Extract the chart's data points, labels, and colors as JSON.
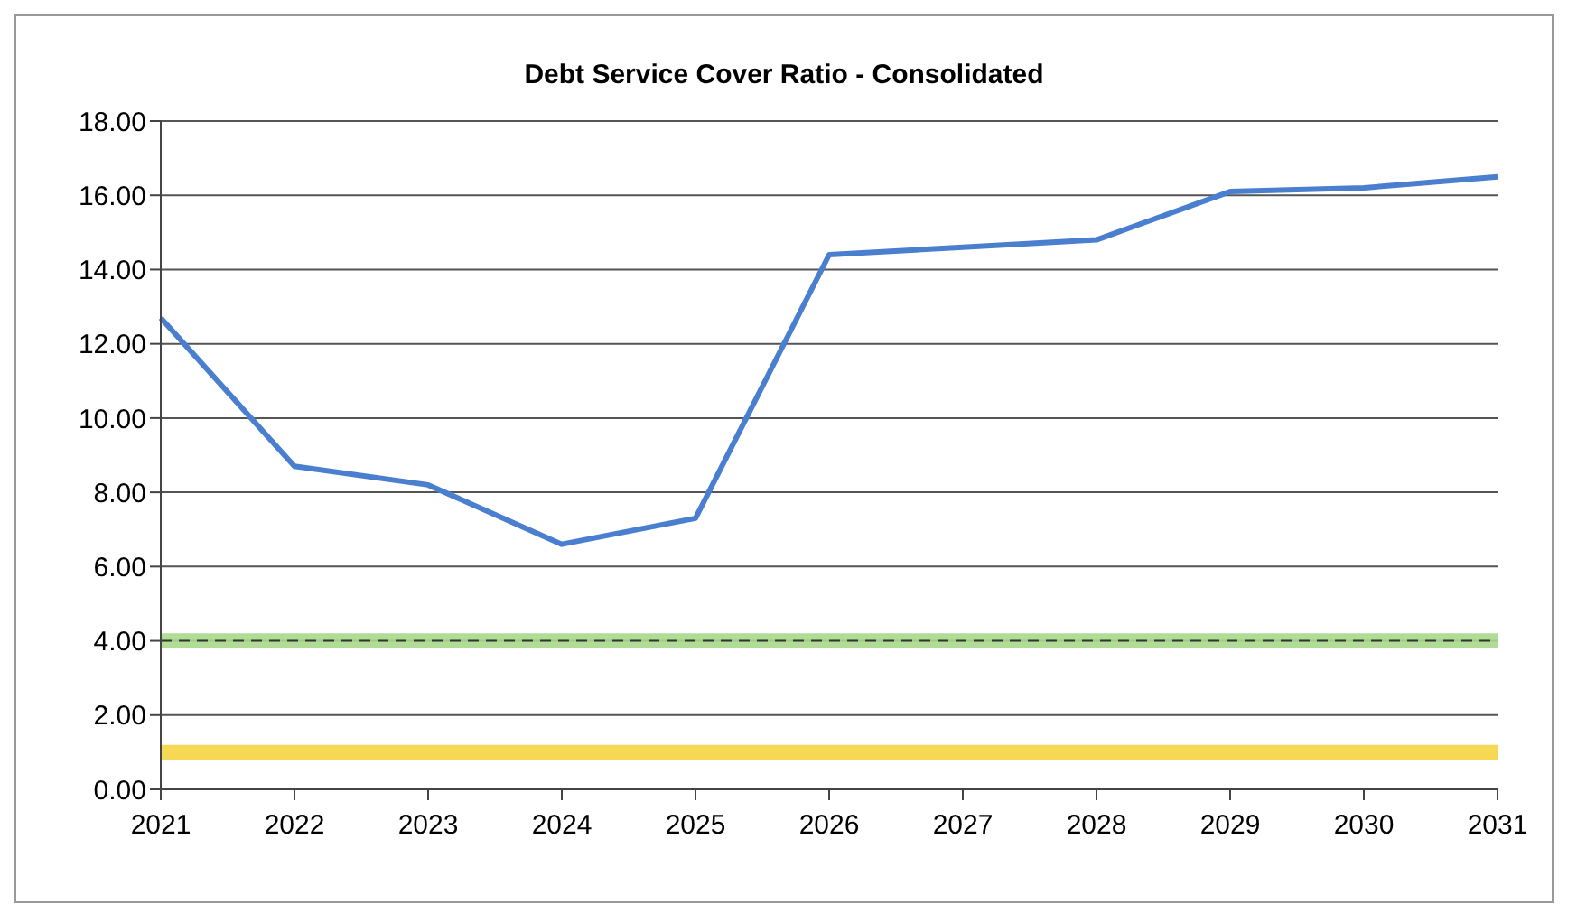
{
  "chart_data": {
    "type": "line",
    "title": "Debt Service Cover Ratio - Consolidated",
    "categories": [
      "2021",
      "2022",
      "2023",
      "2024",
      "2025",
      "2026",
      "2027",
      "2028",
      "2029",
      "2030",
      "2031"
    ],
    "series": [
      {
        "color": "#4a7fd0",
        "values": [
          12.7,
          8.7,
          8.2,
          6.6,
          7.3,
          14.4,
          14.6,
          14.8,
          16.1,
          16.2,
          16.5
        ]
      }
    ],
    "ylim": [
      0,
      18
    ],
    "yticks": [
      {
        "value": 0,
        "label": "0.00"
      },
      {
        "value": 2,
        "label": "2.00"
      },
      {
        "value": 4,
        "label": "4.00"
      },
      {
        "value": 6,
        "label": "6.00"
      },
      {
        "value": 8,
        "label": "8.00"
      },
      {
        "value": 10,
        "label": "10.00"
      },
      {
        "value": 12,
        "label": "12.00"
      },
      {
        "value": 14,
        "label": "14.00"
      },
      {
        "value": 16,
        "label": "16.00"
      },
      {
        "value": 18,
        "label": "18.00"
      }
    ],
    "bands": [
      {
        "axis": "y",
        "from": 3.8,
        "to": 4.2,
        "color": "#a8d88a"
      },
      {
        "axis": "y",
        "from": 0.8,
        "to": 1.2,
        "color": "#f5d442"
      }
    ],
    "ref_lines": [
      {
        "axis": "y",
        "value": 4,
        "color": "#333333",
        "line_style": "dashed"
      }
    ],
    "grid": "y",
    "marker": "none",
    "line_style": "solid"
  }
}
